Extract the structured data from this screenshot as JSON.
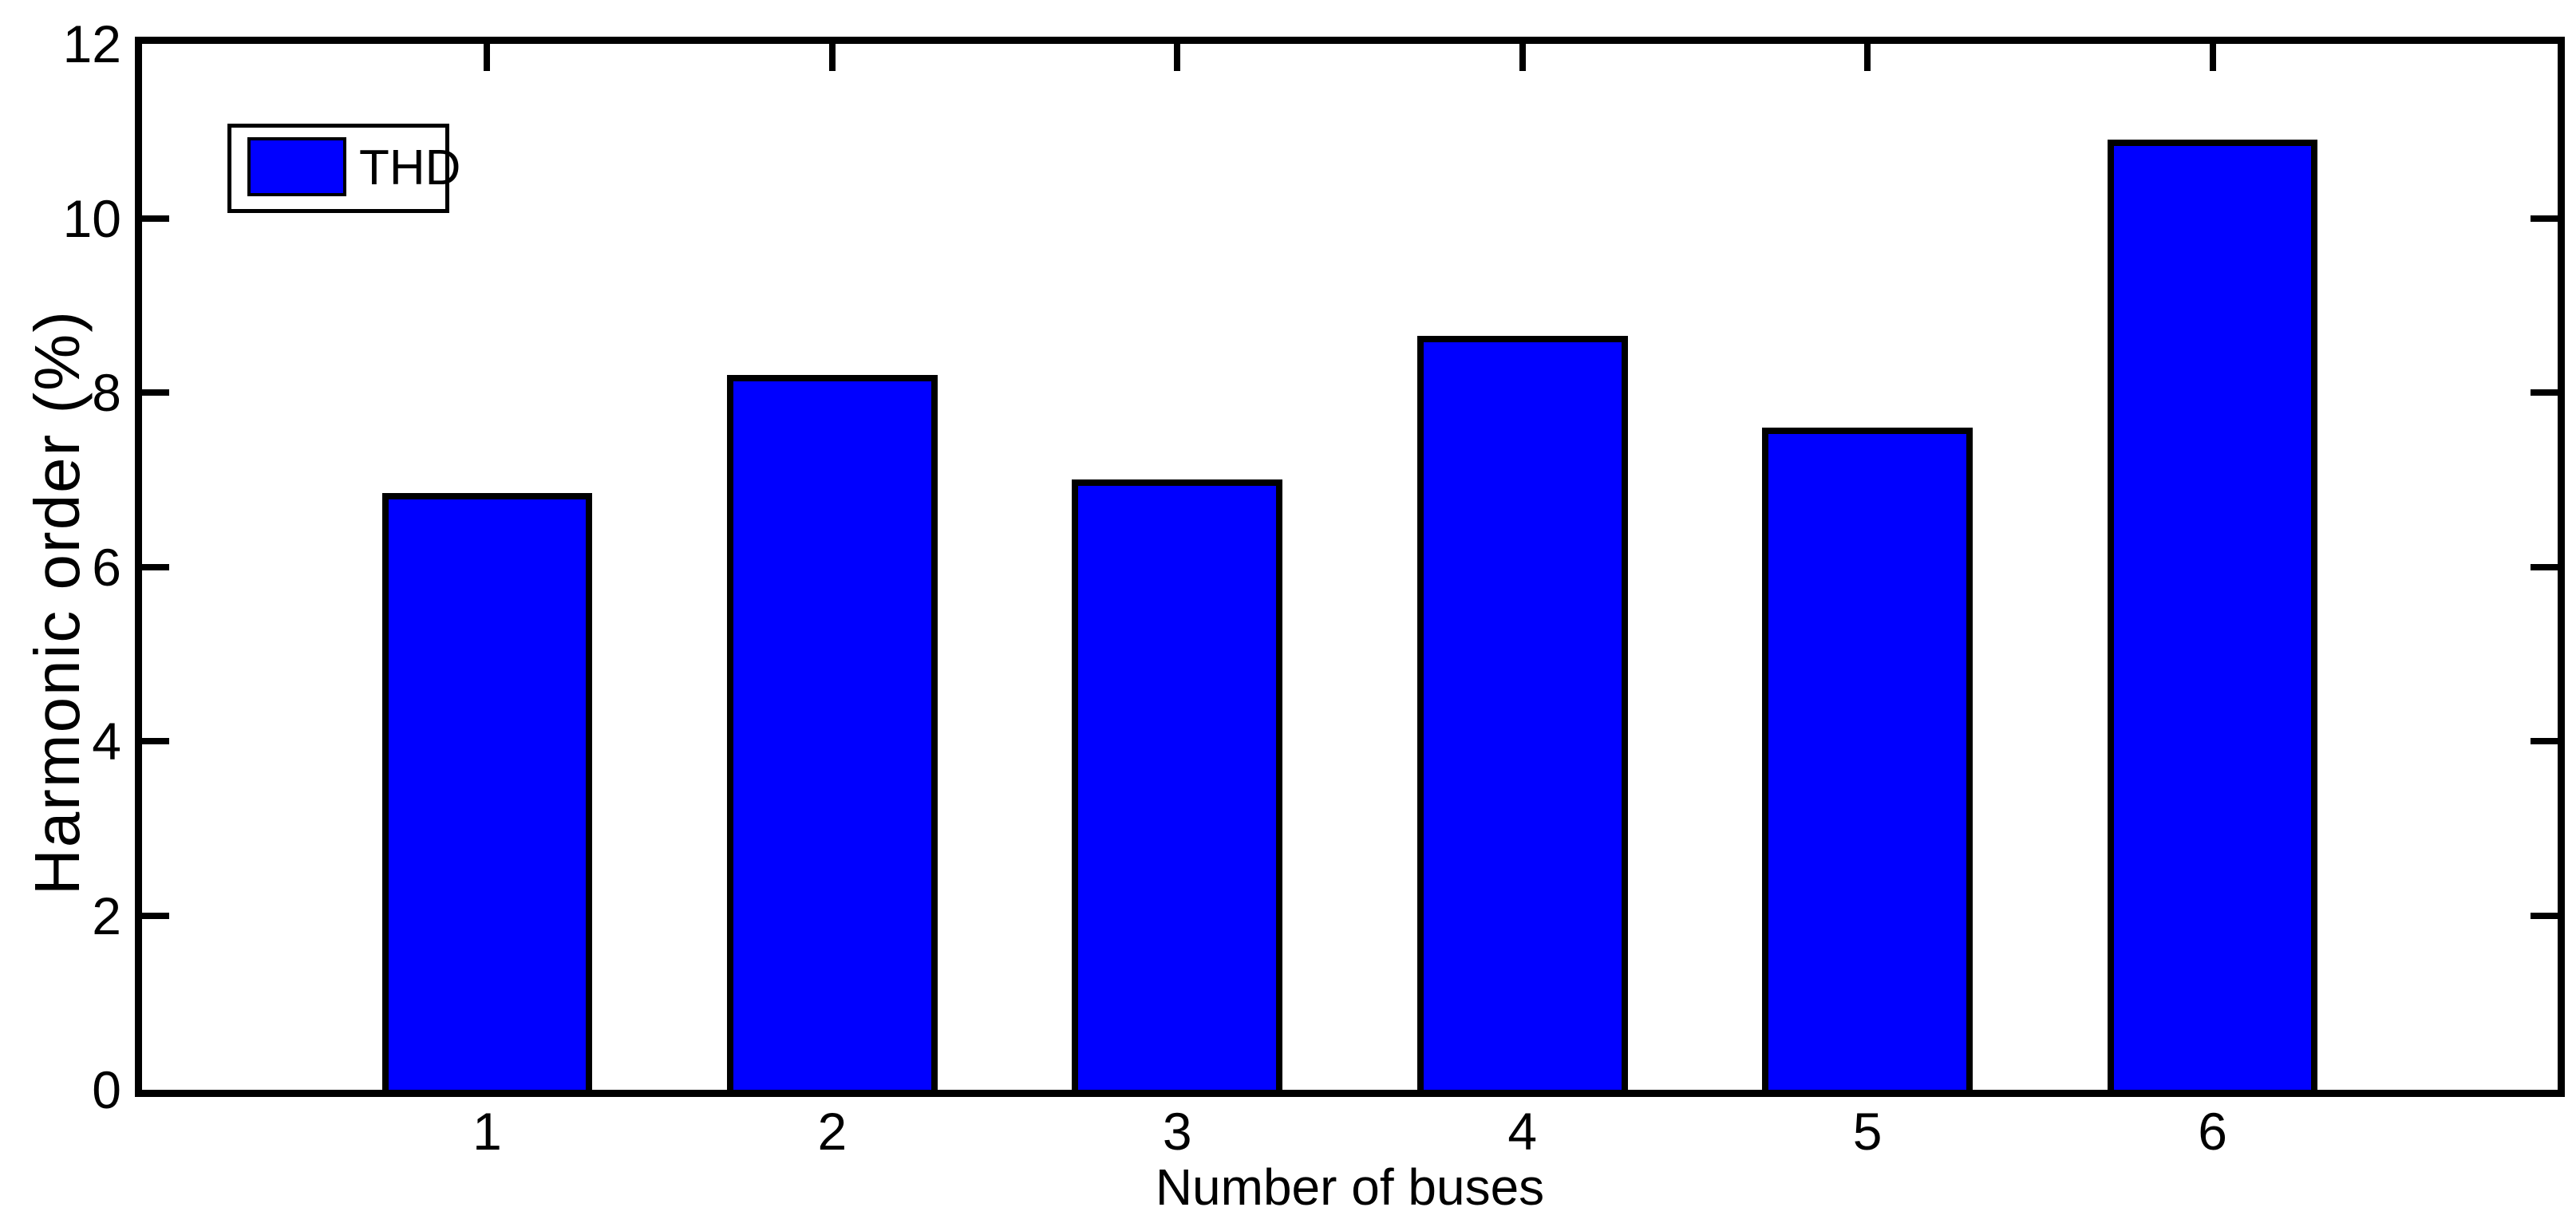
{
  "figure": {
    "background_color": "#ffffff",
    "axes_color": "#000000"
  },
  "chart_data": {
    "type": "bar",
    "title": "",
    "xlabel": "Number of buses",
    "ylabel": "Harmonic order (%)",
    "categories": [
      "1",
      "2",
      "3",
      "4",
      "5",
      "6"
    ],
    "values": [
      6.85,
      8.2,
      7.0,
      8.65,
      7.6,
      10.9
    ],
    "series_name": "THD",
    "ylim": [
      0,
      12
    ],
    "yticks": [
      0,
      2,
      4,
      6,
      8,
      10,
      12
    ],
    "xlim": [
      0,
      7
    ],
    "grid": false,
    "bar_color": "#0000ff",
    "bar_edge_color": "#000000",
    "bar_width_fraction": 0.61,
    "legend": {
      "position": "upper-left",
      "entries": [
        "THD"
      ],
      "swatch_color": "#0000ff"
    }
  }
}
